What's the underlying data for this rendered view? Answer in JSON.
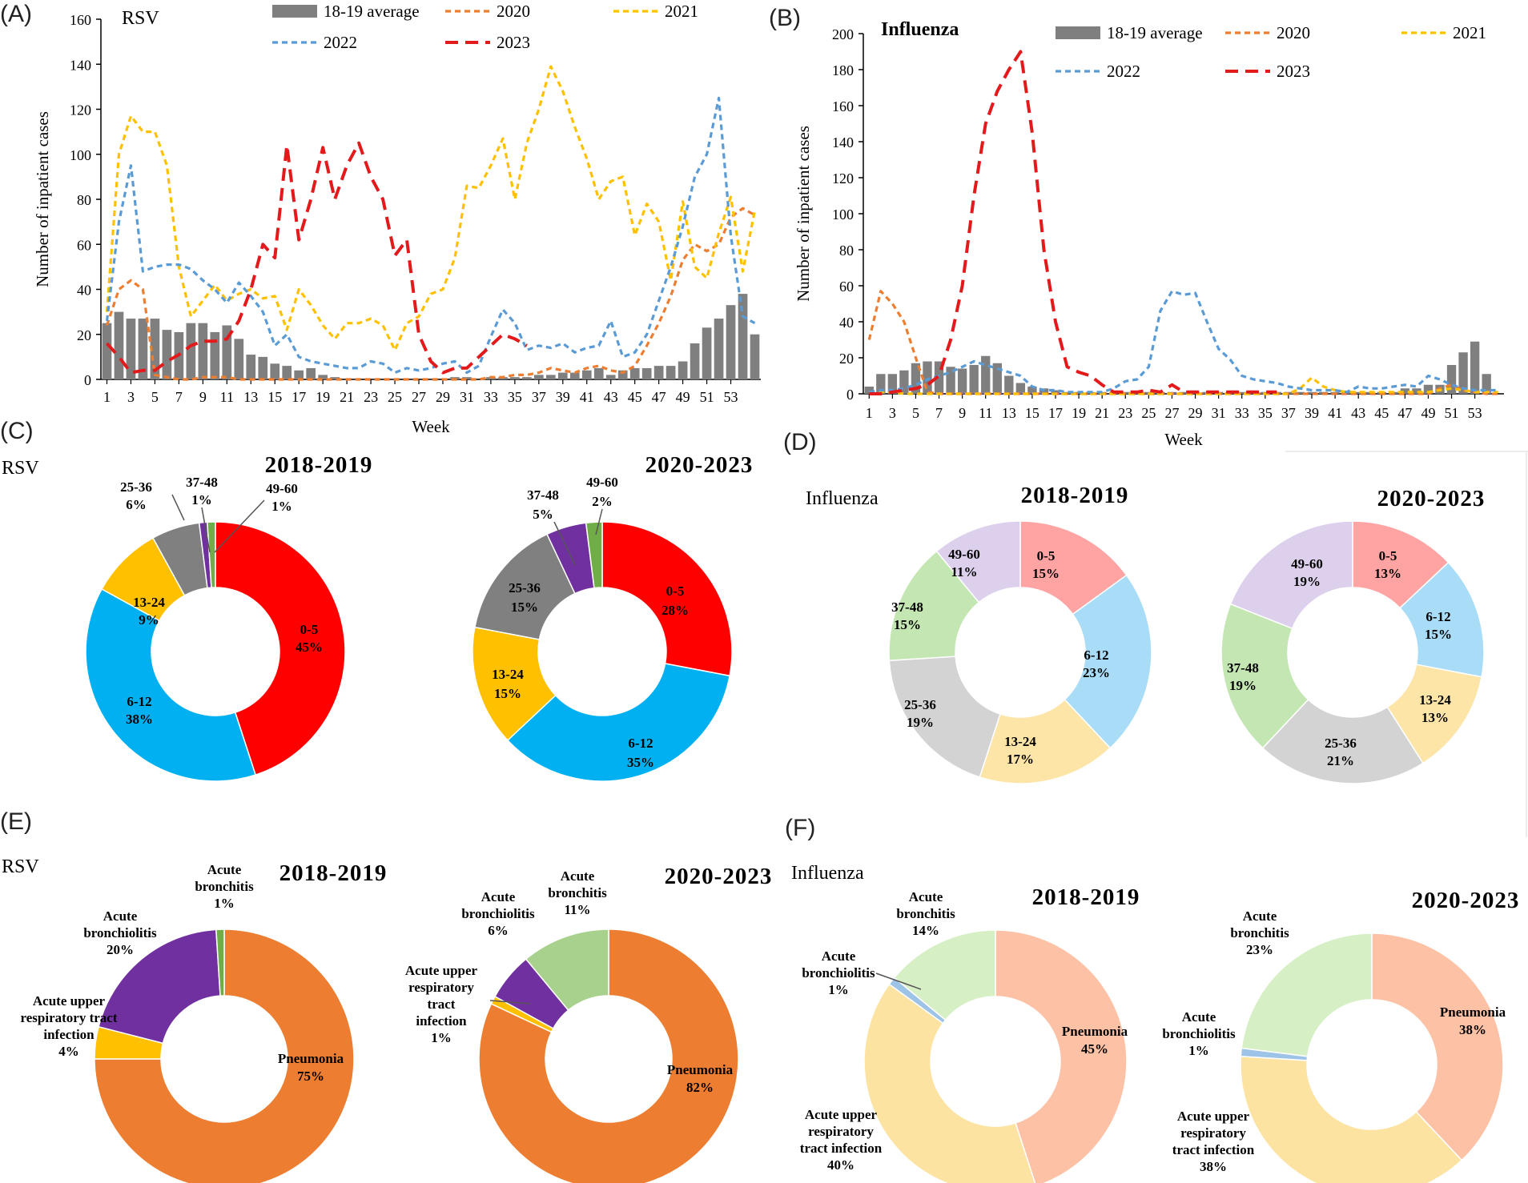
{
  "colors": {
    "avg_bar": "#7f7f7f",
    "y2020": "#ed7d31",
    "y2021": "#ffc000",
    "y2022": "#5b9bd5",
    "y2023": "#e31a1c"
  },
  "chart_data": [
    {
      "id": "A",
      "panel_label": "(A)",
      "type": "bar+line",
      "title": "RSV",
      "xlabel": "Week",
      "ylabel": "Number of inpatient cases",
      "ylim": [
        0,
        160
      ],
      "yticks": [
        "0",
        "20",
        "40",
        "60",
        "80",
        "100",
        "120",
        "140",
        "160"
      ],
      "xticks": [
        "1",
        "3",
        "5",
        "7",
        "9",
        "11",
        "13",
        "15",
        "17",
        "19",
        "21",
        "23",
        "25",
        "27",
        "29",
        "31",
        "33",
        "35",
        "37",
        "39",
        "41",
        "43",
        "45",
        "47",
        "49",
        "51",
        "53"
      ],
      "legend": [
        "18-19 average",
        "2020",
        "2021",
        "2022",
        "2023"
      ],
      "bar_series": {
        "name": "18-19 average",
        "values": [
          25,
          30,
          27,
          27,
          27,
          22,
          21,
          25,
          25,
          21,
          24,
          18,
          11,
          10,
          7,
          6,
          4,
          5,
          2,
          1,
          0,
          0,
          0,
          0,
          0,
          0,
          0,
          0,
          0,
          1,
          1,
          0,
          1,
          1,
          1,
          1,
          2,
          2,
          3,
          3,
          4,
          5,
          2,
          4,
          5,
          5,
          6,
          6,
          8,
          16,
          23,
          27,
          33,
          38,
          20
        ]
      },
      "series": [
        {
          "name": "2020",
          "values": [
            24,
            40,
            44,
            40,
            2,
            1,
            0,
            0,
            1,
            1,
            1,
            0,
            0,
            0,
            0,
            0,
            0,
            0,
            0,
            0,
            0,
            0,
            0,
            0,
            0,
            0,
            0,
            0,
            0,
            0,
            0,
            0,
            1,
            1,
            2,
            2,
            3,
            5,
            4,
            3,
            5,
            6,
            4,
            3,
            6,
            15,
            25,
            37,
            53,
            60,
            57,
            60,
            72,
            76,
            73
          ]
        },
        {
          "name": "2021",
          "values": [
            30,
            100,
            117,
            110,
            110,
            95,
            50,
            28,
            35,
            42,
            35,
            38,
            40,
            36,
            37,
            22,
            40,
            33,
            24,
            18,
            25,
            25,
            27,
            24,
            13,
            25,
            28,
            38,
            40,
            54,
            86,
            85,
            95,
            107,
            80,
            105,
            120,
            139,
            128,
            112,
            98,
            80,
            88,
            90,
            64,
            78,
            70,
            44,
            79,
            50,
            45,
            65,
            81,
            48,
            75
          ]
        },
        {
          "name": "2022",
          "values": [
            26,
            70,
            95,
            48,
            50,
            51,
            51,
            49,
            44,
            40,
            34,
            43,
            37,
            30,
            15,
            20,
            10,
            8,
            7,
            6,
            5,
            5,
            8,
            7,
            3,
            5,
            4,
            5,
            7,
            8,
            3,
            6,
            19,
            31,
            25,
            13,
            15,
            14,
            16,
            12,
            14,
            15,
            26,
            10,
            12,
            20,
            35,
            50,
            68,
            90,
            100,
            125,
            64,
            28,
            25
          ]
        },
        {
          "name": "2023",
          "values": [
            16,
            10,
            3,
            4,
            4,
            8,
            11,
            15,
            17,
            17,
            18,
            26,
            40,
            60,
            54,
            104,
            62,
            80,
            103,
            80,
            95,
            105,
            90,
            80,
            55,
            62,
            20,
            8,
            3,
            5,
            5,
            10,
            15,
            20,
            18,
            15,
            null,
            null,
            null,
            null,
            null,
            null,
            null,
            null,
            null,
            null,
            null,
            null,
            null,
            null,
            null,
            null,
            null,
            null,
            null
          ]
        }
      ]
    },
    {
      "id": "B",
      "panel_label": "(B)",
      "type": "bar+line",
      "title": "Influenza",
      "xlabel": "Week",
      "ylabel": "Number of inpatient cases",
      "ylim": [
        0,
        200
      ],
      "yticks": [
        "0",
        "20",
        "40",
        "60",
        "80",
        "100",
        "120",
        "140",
        "160",
        "180",
        "200"
      ],
      "xticks": [
        "1",
        "3",
        "5",
        "7",
        "9",
        "11",
        "13",
        "15",
        "17",
        "19",
        "21",
        "23",
        "25",
        "27",
        "29",
        "31",
        "33",
        "35",
        "37",
        "39",
        "41",
        "43",
        "45",
        "47",
        "49",
        "51",
        "53"
      ],
      "legend": [
        "18-19 average",
        "2020",
        "2021",
        "2022",
        "2023"
      ],
      "bar_series": {
        "name": "18-19 average",
        "values": [
          4,
          11,
          11,
          13,
          17,
          18,
          18,
          15,
          14,
          16,
          21,
          17,
          10,
          6,
          4,
          3,
          2,
          1,
          1,
          1,
          1,
          1,
          1,
          1,
          1,
          1,
          1,
          1,
          1,
          1,
          1,
          1,
          1,
          1,
          1,
          1,
          1,
          1,
          1,
          1,
          1,
          1,
          1,
          1,
          1,
          1,
          3,
          3,
          5,
          5,
          16,
          23,
          29,
          11,
          0
        ]
      },
      "series": [
        {
          "name": "2020",
          "values": [
            30,
            57,
            50,
            40,
            20,
            1,
            0,
            0,
            0,
            0,
            0,
            0,
            0,
            0,
            0,
            0,
            0,
            0,
            0,
            0,
            0,
            0,
            0,
            0,
            0,
            0,
            0,
            0,
            0,
            0,
            0,
            0,
            0,
            0,
            0,
            0,
            0,
            0,
            0,
            0,
            0,
            0,
            0,
            0,
            0,
            0,
            0,
            0,
            0,
            3,
            5,
            2,
            1,
            0,
            0
          ]
        },
        {
          "name": "2021",
          "values": [
            1,
            1,
            1,
            0,
            0,
            0,
            0,
            0,
            0,
            0,
            0,
            0,
            0,
            0,
            0,
            0,
            0,
            0,
            0,
            0,
            0,
            0,
            0,
            0,
            0,
            0,
            0,
            0,
            0,
            0,
            0,
            0,
            0,
            0,
            0,
            0,
            0,
            3,
            9,
            4,
            2,
            1,
            1,
            1,
            1,
            1,
            1,
            1,
            1,
            2,
            3,
            2,
            1,
            1,
            1
          ]
        },
        {
          "name": "2022",
          "values": [
            1,
            2,
            2,
            3,
            5,
            8,
            10,
            12,
            15,
            18,
            16,
            14,
            12,
            10,
            4,
            2,
            2,
            1,
            1,
            1,
            1,
            3,
            7,
            8,
            15,
            46,
            57,
            55,
            56,
            40,
            25,
            19,
            10,
            8,
            7,
            6,
            4,
            3,
            2,
            2,
            2,
            1,
            4,
            3,
            3,
            4,
            5,
            4,
            10,
            8,
            5,
            3,
            2,
            2,
            2
          ]
        },
        {
          "name": "2023",
          "values": [
            0,
            0,
            1,
            2,
            3,
            5,
            10,
            30,
            60,
            110,
            150,
            168,
            180,
            190,
            145,
            80,
            40,
            15,
            12,
            10,
            5,
            1,
            1,
            1,
            2,
            1,
            5,
            1,
            1,
            1,
            1,
            1,
            1,
            1,
            1,
            1,
            null,
            null,
            null,
            null,
            null,
            null,
            null,
            null,
            null,
            null,
            null,
            null,
            null,
            null,
            null,
            null,
            null,
            null,
            null
          ]
        }
      ]
    },
    {
      "id": "C",
      "panel_label": "(C)",
      "type": "donut",
      "group_title": "RSV",
      "charts": [
        {
          "title": "2018-2019",
          "labels": [
            "0-5",
            "6-12",
            "13-24",
            "25-36",
            "37-48",
            "49-60"
          ],
          "values": [
            45,
            38,
            9,
            6,
            1,
            1
          ],
          "colors": [
            "#ff0000",
            "#00b0f0",
            "#ffc000",
            "#808080",
            "#7030a0",
            "#70ad47"
          ]
        },
        {
          "title": "2020-2023",
          "labels": [
            "0-5",
            "6-12",
            "13-24",
            "25-36",
            "37-48",
            "49-60"
          ],
          "values": [
            28,
            35,
            15,
            15,
            5,
            2
          ],
          "colors": [
            "#ff0000",
            "#00b0f0",
            "#ffc000",
            "#808080",
            "#7030a0",
            "#70ad47"
          ]
        }
      ]
    },
    {
      "id": "D",
      "panel_label": "(D)",
      "type": "donut",
      "group_title": "Influenza",
      "charts": [
        {
          "title": "2018-2019",
          "labels": [
            "0-5",
            "6-12",
            "13-24",
            "25-36",
            "37-48",
            "49-60"
          ],
          "values": [
            15,
            23,
            17,
            19,
            15,
            11
          ],
          "colors": [
            "#ffa3a3",
            "#a9dcf6",
            "#fde5a8",
            "#d3d3d3",
            "#c3e6b2",
            "#dcd0ec"
          ]
        },
        {
          "title": "2020-2023",
          "labels": [
            "0-5",
            "6-12",
            "13-24",
            "25-36",
            "37-48",
            "49-60"
          ],
          "values": [
            13,
            15,
            13,
            21,
            19,
            19
          ],
          "colors": [
            "#ffa3a3",
            "#a9dcf6",
            "#fde5a8",
            "#d3d3d3",
            "#c3e6b2",
            "#dcd0ec"
          ]
        }
      ]
    },
    {
      "id": "E",
      "panel_label": "(E)",
      "type": "donut",
      "group_title": "RSV",
      "charts": [
        {
          "title": "2018-2019",
          "labels": [
            "Pneumonia",
            "Acute upper respiratory tract infection",
            "Acute bronchiolitis",
            "Acute bronchitis"
          ],
          "values": [
            75,
            4,
            20,
            1
          ],
          "colors": [
            "#ed7d31",
            "#ffc000",
            "#7030a0",
            "#70ad47"
          ]
        },
        {
          "title": "2020-2023",
          "labels": [
            "Pneumonia",
            "Acute upper respiratory tract infection",
            "Acute bronchiolitis",
            "Acute bronchitis"
          ],
          "values": [
            82,
            1,
            6,
            11
          ],
          "colors": [
            "#ed7d31",
            "#ffc000",
            "#7030a0",
            "#a9d18e"
          ]
        }
      ]
    },
    {
      "id": "F",
      "panel_label": "(F)",
      "type": "donut",
      "group_title": "Influenza",
      "charts": [
        {
          "title": "2018-2019",
          "labels": [
            "Pneumonia",
            "Acute upper respiratory tract infection",
            "Acute bronchiolitis",
            "Acute bronchitis"
          ],
          "values": [
            45,
            40,
            1,
            14
          ],
          "colors": [
            "#fdc1a6",
            "#fde3a1",
            "#9dc3e6",
            "#d7efc5"
          ]
        },
        {
          "title": "2020-2023",
          "labels": [
            "Pneumonia",
            "Acute upper respiratory tract infection",
            "Acute bronchiolitis",
            "Acute bronchitis"
          ],
          "values": [
            38,
            38,
            1,
            23
          ],
          "colors": [
            "#fdc1a6",
            "#fde3a1",
            "#9dc3e6",
            "#d7efc5"
          ]
        }
      ]
    }
  ],
  "donut_text": {
    "C0": [
      "0-5",
      "45%",
      "6-12",
      "38%",
      "13-24",
      "9%",
      "25-36",
      "6%",
      "37-48",
      "1%",
      "49-60",
      "1%"
    ],
    "C1": [
      "0-5",
      "28%",
      "6-12",
      "35%",
      "13-24",
      "15%",
      "25-36",
      "15%",
      "37-48",
      "5%",
      "49-60",
      "2%"
    ],
    "D0": [
      "0-5",
      "15%",
      "6-12",
      "23%",
      "13-24",
      "17%",
      "25-36",
      "19%",
      "37-48",
      "15%",
      "49-60",
      "11%"
    ],
    "D1": [
      "0-5",
      "13%",
      "6-12",
      "15%",
      "13-24",
      "13%",
      "25-36",
      "21%",
      "37-48",
      "19%",
      "49-60",
      "19%"
    ],
    "E0": [
      "Pneumonia",
      "75%",
      "Acute upper",
      "respiratory tract",
      "infection",
      "4%",
      "Acute",
      "bronchiolitis",
      "20%",
      "Acute",
      "bronchitis",
      "1%"
    ],
    "E1": [
      "Pneumonia",
      "82%",
      "Acute upper",
      "respiratory",
      "tract",
      "infection",
      "1%",
      "Acute",
      "bronchiolitis",
      "6%",
      "Acute",
      "bronchitis",
      "11%"
    ],
    "F0": [
      "Pneumonia",
      "45%",
      "Acute upper",
      "respiratory",
      "tract infection",
      "40%",
      "Acute",
      "bronchiolitis",
      "1%",
      "Acute",
      "bronchitis",
      "14%"
    ],
    "F1": [
      "Pneumonia",
      "38%",
      "Acute upper",
      "respiratory",
      "tract infection",
      "38%",
      "Acute",
      "bronchiolitis",
      "1%",
      "Acute",
      "bronchitis",
      "23%"
    ]
  }
}
